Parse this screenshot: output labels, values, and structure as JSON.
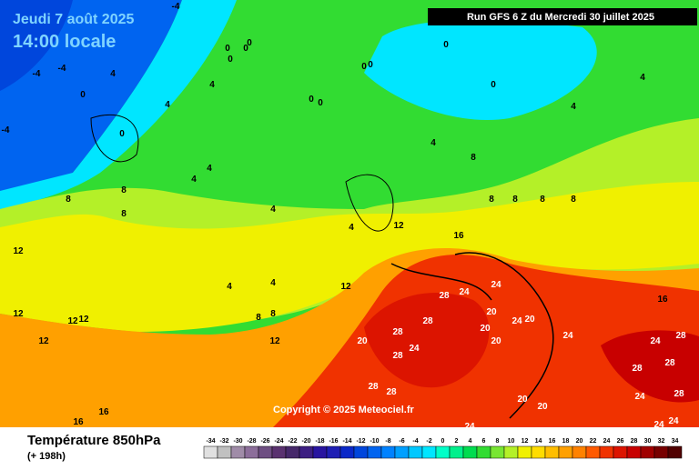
{
  "header": {
    "date": "Jeudi 7 août 2025",
    "time": "14:00 locale",
    "run": "Run GFS 6 Z du Mercredi 30 juillet 2025"
  },
  "copyright": "Copyright © 2025 Meteociel.fr",
  "footer": {
    "title": "Température 850hPa",
    "lead": "(+ 198h)"
  },
  "scale": {
    "values": [
      -34,
      -32,
      -30,
      -28,
      -26,
      -24,
      -22,
      -20,
      -18,
      -16,
      -14,
      -12,
      -10,
      -8,
      -6,
      -4,
      -2,
      0,
      2,
      4,
      6,
      8,
      10,
      12,
      14,
      16,
      18,
      20,
      22,
      24,
      26,
      28,
      30,
      32,
      34
    ],
    "colors": [
      "#e0e0e0",
      "#c0c0c0",
      "#a08ca8",
      "#8c6e9a",
      "#6e4e82",
      "#5a3270",
      "#46286a",
      "#3c1e82",
      "#2814a0",
      "#1e1eb4",
      "#0a28c8",
      "#0046dc",
      "#0064f0",
      "#0082ff",
      "#00a0ff",
      "#00c8ff",
      "#00e6ff",
      "#00ffc8",
      "#00f08c",
      "#00dc50",
      "#32dc32",
      "#78e632",
      "#b4f028",
      "#f0f000",
      "#ffdc00",
      "#ffbe00",
      "#ffa000",
      "#ff8200",
      "#ff5a00",
      "#f03200",
      "#dc1400",
      "#c80000",
      "#a00000",
      "#780000",
      "#500000"
    ]
  },
  "contour_labels": [
    -4,
    -4,
    -4,
    -4,
    0,
    0,
    0,
    0,
    0,
    0,
    0,
    0,
    0,
    0,
    0,
    0,
    4,
    4,
    4,
    4,
    4,
    4,
    4,
    4,
    4,
    4,
    4,
    4,
    8,
    8,
    8,
    8,
    8,
    8,
    8,
    8,
    8,
    8,
    12,
    12,
    12,
    12,
    12,
    12,
    12,
    12,
    16,
    16,
    16,
    16,
    28,
    24,
    24,
    28,
    28,
    24,
    28,
    20,
    20,
    20,
    20,
    24,
    20,
    24,
    28,
    28,
    24,
    20,
    20,
    28,
    24,
    28,
    28,
    24,
    28,
    24,
    24
  ]
}
